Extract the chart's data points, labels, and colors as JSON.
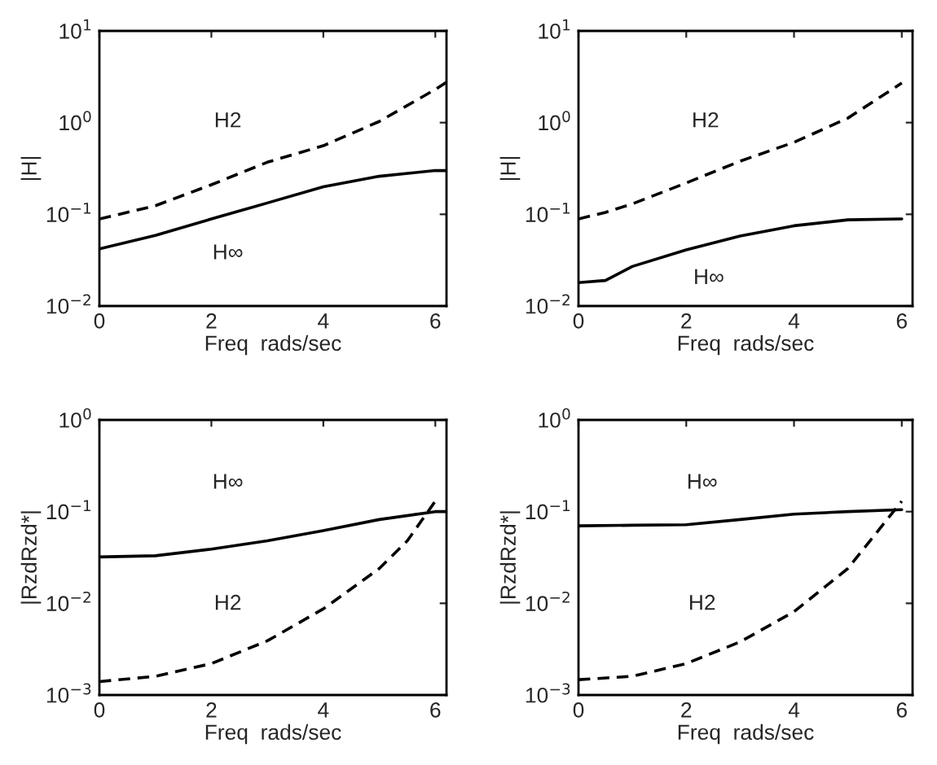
{
  "chart_data": [
    {
      "type": "line",
      "xlabel": "Freq  rads/sec",
      "ylabel": "|H|",
      "log": "y",
      "xlim": [
        0,
        6.2
      ],
      "xticks": [
        0,
        2,
        4,
        6
      ],
      "ylim": [
        0.01,
        10
      ],
      "yticks": [
        {
          "value": 0.01,
          "label": "10$^{−2}$"
        },
        {
          "value": 0.1,
          "label": "10$^{−1}$"
        },
        {
          "value": 1,
          "label": "10$^{0}$"
        },
        {
          "value": 10,
          "label": "10$^{1}$"
        }
      ],
      "grid": false,
      "x": [
        0,
        1,
        2,
        3,
        4,
        5,
        6,
        6.2
      ],
      "series": [
        {
          "color": "#000000",
          "line_style": "dashed",
          "values": [
            0.089,
            0.124,
            0.21,
            0.37,
            0.56,
            1.03,
            2.3,
            2.76
          ]
        },
        {
          "color": "#000000",
          "line_style": "solid",
          "values": [
            0.042,
            0.059,
            0.089,
            0.133,
            0.2,
            0.26,
            0.3,
            0.3
          ]
        }
      ],
      "annotations": [
        "H2",
        "H∞"
      ]
    },
    {
      "type": "line",
      "xlabel": "Freq  rads/sec",
      "ylabel": "|H|",
      "log": "y",
      "xlim": [
        0,
        6.2
      ],
      "xticks": [
        0,
        2,
        4,
        6
      ],
      "ylim": [
        0.01,
        10
      ],
      "yticks": [
        {
          "value": 0.01,
          "label": "10$^{−2}$"
        },
        {
          "value": 0.1,
          "label": "10$^{−1}$"
        },
        {
          "value": 1,
          "label": "10$^{0}$"
        },
        {
          "value": 10,
          "label": "10$^{1}$"
        }
      ],
      "grid": false,
      "x": [
        0,
        0.5,
        1,
        2,
        3,
        4,
        5,
        6
      ],
      "series": [
        {
          "color": "#000000",
          "line_style": "dashed",
          "values": [
            0.089,
            0.105,
            0.13,
            0.22,
            0.38,
            0.61,
            1.12,
            2.7
          ]
        },
        {
          "color": "#000000",
          "line_style": "solid",
          "values": [
            0.018,
            0.019,
            0.027,
            0.041,
            0.058,
            0.075,
            0.087,
            0.089
          ]
        }
      ],
      "annotations": [
        "H2",
        "H∞"
      ]
    },
    {
      "type": "line",
      "xlabel": "Freq  rads/sec",
      "ylabel": "|RzdRzd*|",
      "log": "y",
      "xlim": [
        0,
        6.2
      ],
      "xticks": [
        0,
        2,
        4,
        6
      ],
      "ylim": [
        0.001,
        1
      ],
      "yticks": [
        {
          "value": 0.001,
          "label": "10$^{−3}$"
        },
        {
          "value": 0.01,
          "label": "10$^{−2}$"
        },
        {
          "value": 0.1,
          "label": "10$^{−1}$"
        },
        {
          "value": 1,
          "label": "10$^{0}$"
        }
      ],
      "grid": false,
      "series": [
        {
          "color": "#000000",
          "line_style": "solid",
          "x": [
            0,
            1,
            2,
            3,
            4,
            5,
            6,
            6.2
          ],
          "values": [
            0.032,
            0.033,
            0.039,
            0.048,
            0.062,
            0.082,
            0.1,
            0.1
          ]
        },
        {
          "color": "#000000",
          "line_style": "dashed",
          "x": [
            0,
            1,
            2,
            3,
            4,
            5,
            5.5,
            6
          ],
          "values": [
            0.0014,
            0.0016,
            0.0022,
            0.0039,
            0.0087,
            0.024,
            0.048,
            0.13
          ]
        }
      ],
      "annotations": [
        "H∞",
        "H2"
      ]
    },
    {
      "type": "line",
      "xlabel": "Freq  rads/sec",
      "ylabel": "|RzdRzd*|",
      "log": "y",
      "xlim": [
        0,
        6.2
      ],
      "xticks": [
        0,
        2,
        4,
        6
      ],
      "ylim": [
        0.001,
        1
      ],
      "yticks": [
        {
          "value": 0.001,
          "label": "10$^{−3}$"
        },
        {
          "value": 0.01,
          "label": "10$^{−2}$"
        },
        {
          "value": 0.1,
          "label": "10$^{−1}$"
        },
        {
          "value": 1,
          "label": "10$^{0}$"
        }
      ],
      "grid": false,
      "series": [
        {
          "color": "#000000",
          "line_style": "solid",
          "x": [
            0,
            1,
            2,
            3,
            4,
            5,
            6
          ],
          "values": [
            0.07,
            0.071,
            0.072,
            0.082,
            0.094,
            0.1,
            0.105
          ]
        },
        {
          "color": "#000000",
          "line_style": "dashed",
          "x": [
            0,
            1,
            2,
            3,
            4,
            5,
            6
          ],
          "values": [
            0.00147,
            0.0016,
            0.0022,
            0.0038,
            0.0081,
            0.024,
            0.13
          ]
        }
      ],
      "annotations": [
        "H∞",
        "H2"
      ]
    }
  ]
}
